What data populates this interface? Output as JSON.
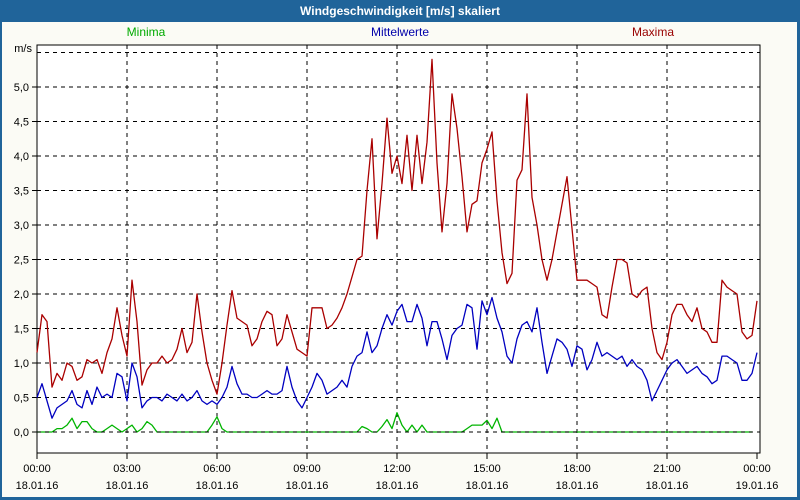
{
  "chart_data": {
    "type": "line",
    "title": "Windgeschwindigkeit [m/s] skaliert",
    "y_unit": "m/s",
    "ylim": [
      0,
      5.5
    ],
    "y_tick_step": 0.5,
    "y_tick_labels": [
      "0,0",
      "0,5",
      "1,0",
      "1,5",
      "2,0",
      "2,5",
      "3,0",
      "3,5",
      "4,0",
      "4,5",
      "5,0"
    ],
    "x_hours_span": 24,
    "x_step_minutes": 10,
    "x_tick_every_hours": 3,
    "x_time_labels": [
      "00:00",
      "03:00",
      "06:00",
      "09:00",
      "12:00",
      "15:00",
      "18:00",
      "21:00",
      "00:00"
    ],
    "x_date_labels": [
      "18.01.16",
      "18.01.16",
      "18.01.16",
      "18.01.16",
      "18.01.16",
      "18.01.16",
      "18.01.16",
      "18.01.16",
      "19.01.16"
    ],
    "grid": "dashed",
    "legend_position": "top",
    "series": [
      {
        "name": "Minima",
        "color": "#00B400",
        "values": [
          0,
          0,
          0,
          0,
          0.05,
          0.05,
          0.1,
          0.2,
          0.05,
          0.15,
          0.15,
          0.05,
          0,
          0,
          0.05,
          0.1,
          0.05,
          0,
          0.05,
          0.1,
          0,
          0.05,
          0.15,
          0.1,
          0,
          0,
          0,
          0,
          0,
          0,
          0,
          0,
          0,
          0,
          0,
          0.1,
          0.22,
          0.05,
          0,
          0,
          0,
          0,
          0,
          0,
          0,
          0,
          0,
          0,
          0,
          0,
          0,
          0,
          0,
          0,
          0,
          0,
          0,
          0,
          0,
          0,
          0,
          0,
          0,
          0,
          0,
          0.08,
          0.05,
          0,
          0,
          0.08,
          0.18,
          0.05,
          0.28,
          0.1,
          0,
          0.1,
          0,
          0.1,
          0,
          0,
          0,
          0,
          0,
          0,
          0,
          0,
          0.05,
          0.1,
          0.1,
          0.1,
          0.17,
          0.05,
          0.2,
          0,
          0,
          0,
          0,
          0,
          0,
          0,
          0,
          0,
          0,
          0,
          0,
          0,
          0,
          0,
          0,
          0,
          0,
          0,
          0,
          0,
          0,
          0,
          0,
          0,
          0,
          0,
          0,
          0,
          0,
          0,
          0,
          0,
          0,
          0,
          0,
          0,
          0,
          0,
          0,
          0,
          0,
          0,
          0,
          0,
          0,
          0,
          0,
          0,
          0,
          0
        ]
      },
      {
        "name": "Mittelwerte",
        "color": "#0000C0",
        "values": [
          0.5,
          0.7,
          0.45,
          0.2,
          0.35,
          0.4,
          0.45,
          0.6,
          0.4,
          0.35,
          0.6,
          0.4,
          0.65,
          0.5,
          0.55,
          0.5,
          0.85,
          0.8,
          0.45,
          1.0,
          0.8,
          0.35,
          0.45,
          0.5,
          0.5,
          0.45,
          0.55,
          0.5,
          0.45,
          0.55,
          0.45,
          0.5,
          0.6,
          0.45,
          0.4,
          0.45,
          0.4,
          0.5,
          0.65,
          0.95,
          0.7,
          0.55,
          0.55,
          0.5,
          0.5,
          0.55,
          0.6,
          0.55,
          0.55,
          0.6,
          0.95,
          0.65,
          0.45,
          0.35,
          0.5,
          0.65,
          0.85,
          0.75,
          0.55,
          0.6,
          0.65,
          0.75,
          0.65,
          0.95,
          1.1,
          1.15,
          1.45,
          1.15,
          1.25,
          1.5,
          1.7,
          1.55,
          1.75,
          1.85,
          1.6,
          1.6,
          1.85,
          1.65,
          1.25,
          1.6,
          1.6,
          1.35,
          1.05,
          1.4,
          1.5,
          1.55,
          1.85,
          1.8,
          1.2,
          1.9,
          1.7,
          1.95,
          1.65,
          1.45,
          1.1,
          1.0,
          1.35,
          1.55,
          1.6,
          1.45,
          1.8,
          1.3,
          0.85,
          1.1,
          1.35,
          1.3,
          1.2,
          0.95,
          1.25,
          1.2,
          0.9,
          1.05,
          1.3,
          1.1,
          1.15,
          1.1,
          1.05,
          1.1,
          0.95,
          1.05,
          0.95,
          0.9,
          0.75,
          0.45,
          0.6,
          0.75,
          0.9,
          1.0,
          1.05,
          0.95,
          0.85,
          0.9,
          0.95,
          0.85,
          0.8,
          0.7,
          0.75,
          1.1,
          1.1,
          1.05,
          1.0,
          0.75,
          0.75,
          0.85,
          1.15
        ]
      },
      {
        "name": "Maxima",
        "color": "#AA0000",
        "values": [
          1.15,
          1.7,
          1.6,
          0.65,
          0.85,
          0.75,
          1.0,
          0.95,
          0.75,
          0.8,
          1.05,
          1.0,
          1.05,
          0.85,
          1.15,
          1.35,
          1.8,
          1.4,
          1.1,
          2.2,
          1.6,
          0.68,
          0.9,
          1.0,
          1.0,
          1.1,
          1.0,
          1.05,
          1.2,
          1.5,
          1.15,
          1.3,
          2.0,
          1.45,
          1.0,
          0.75,
          0.55,
          1.0,
          1.55,
          2.05,
          1.65,
          1.6,
          1.55,
          1.25,
          1.35,
          1.6,
          1.75,
          1.7,
          1.25,
          1.35,
          1.7,
          1.45,
          1.2,
          1.15,
          1.1,
          1.8,
          1.8,
          1.8,
          1.5,
          1.55,
          1.65,
          1.8,
          2.0,
          2.25,
          2.5,
          2.55,
          3.5,
          4.25,
          2.8,
          3.6,
          4.55,
          3.75,
          4.0,
          3.6,
          4.3,
          3.5,
          4.3,
          3.6,
          4.2,
          5.4,
          3.9,
          2.9,
          3.6,
          4.9,
          4.4,
          3.7,
          2.9,
          3.3,
          3.35,
          3.9,
          4.1,
          4.35,
          3.35,
          2.6,
          2.15,
          2.3,
          3.65,
          3.8,
          4.9,
          3.4,
          3.0,
          2.5,
          2.2,
          2.5,
          2.9,
          3.3,
          3.7,
          2.95,
          2.2,
          2.2,
          2.2,
          2.15,
          2.1,
          1.7,
          1.65,
          2.1,
          2.5,
          2.5,
          2.45,
          2.0,
          1.95,
          2.05,
          2.1,
          1.5,
          1.15,
          1.05,
          1.3,
          1.7,
          1.85,
          1.85,
          1.7,
          1.6,
          1.8,
          1.5,
          1.45,
          1.3,
          1.3,
          2.2,
          2.1,
          2.05,
          2.0,
          1.45,
          1.35,
          1.4,
          1.9
        ]
      }
    ]
  },
  "colors": {
    "title_bar": "#20649A",
    "frame": "#20649A",
    "page_bg": "#FBFBF5",
    "plot_bg": "#FFFFFF",
    "grid": "#000000"
  }
}
